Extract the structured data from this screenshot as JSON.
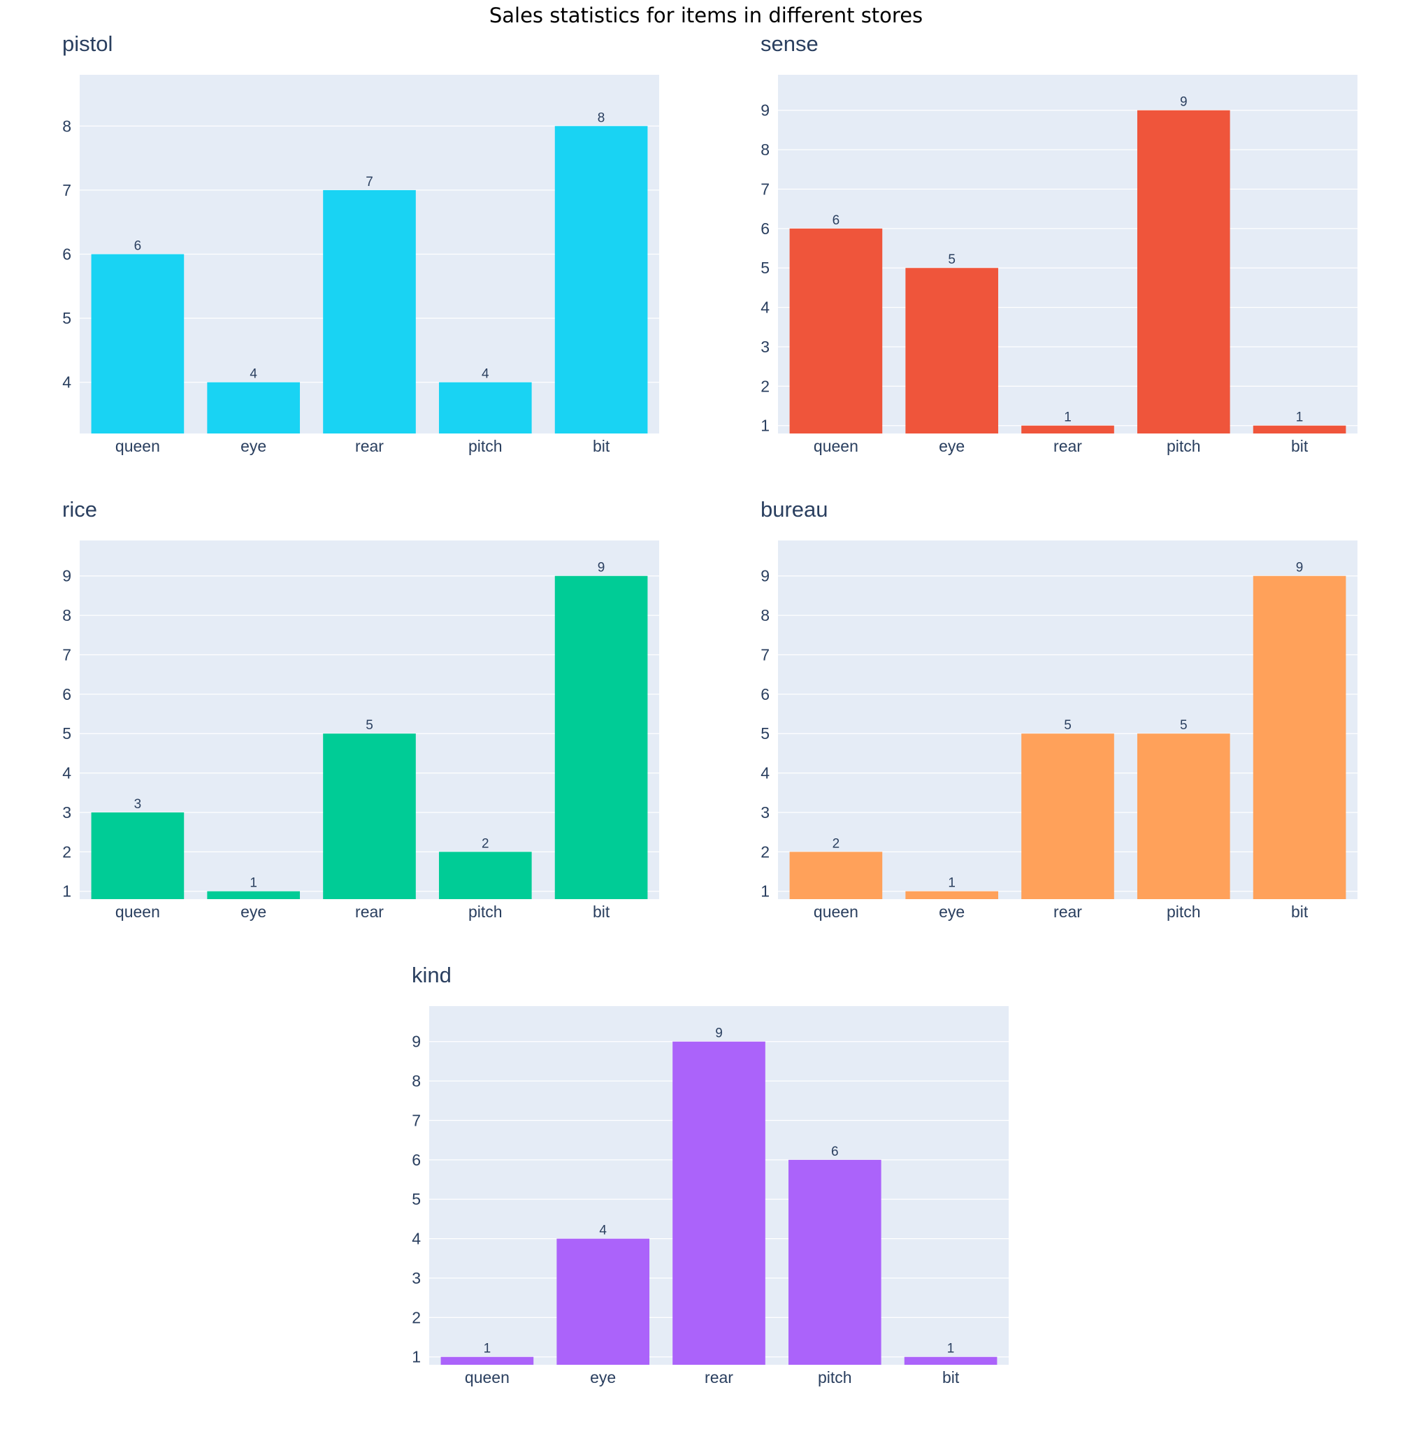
{
  "chart_data": {
    "title": "Sales statistics for items in different stores",
    "type": "bar",
    "categories": [
      "queen",
      "eye",
      "rear",
      "pitch",
      "bit"
    ],
    "background_color": "#e5ecf6",
    "subplots": [
      {
        "title": "pistol",
        "type": "bar",
        "categories": [
          "queen",
          "eye",
          "rear",
          "pitch",
          "bit"
        ],
        "values": [
          6,
          4,
          7,
          4,
          8
        ],
        "color": "#19d3f3",
        "ylim": [
          3.2,
          8.8
        ],
        "yticks": [
          4,
          5,
          6,
          7,
          8
        ]
      },
      {
        "title": "sense",
        "type": "bar",
        "categories": [
          "queen",
          "eye",
          "rear",
          "pitch",
          "bit"
        ],
        "values": [
          6,
          5,
          1,
          9,
          1
        ],
        "color": "#ef553b",
        "ylim": [
          0.8,
          9.9
        ],
        "yticks": [
          1,
          2,
          3,
          4,
          5,
          6,
          7,
          8,
          9
        ]
      },
      {
        "title": "rice",
        "type": "bar",
        "categories": [
          "queen",
          "eye",
          "rear",
          "pitch",
          "bit"
        ],
        "values": [
          3,
          1,
          5,
          2,
          9
        ],
        "color": "#00cc96",
        "ylim": [
          0.8,
          9.9
        ],
        "yticks": [
          1,
          2,
          3,
          4,
          5,
          6,
          7,
          8,
          9
        ]
      },
      {
        "title": "bureau",
        "type": "bar",
        "categories": [
          "queen",
          "eye",
          "rear",
          "pitch",
          "bit"
        ],
        "values": [
          2,
          1,
          5,
          5,
          9
        ],
        "color": "#ffa15a",
        "ylim": [
          0.8,
          9.9
        ],
        "yticks": [
          1,
          2,
          3,
          4,
          5,
          6,
          7,
          8,
          9
        ]
      },
      {
        "title": "kind",
        "type": "bar",
        "categories": [
          "queen",
          "eye",
          "rear",
          "pitch",
          "bit"
        ],
        "values": [
          1,
          4,
          9,
          6,
          1
        ],
        "color": "#ab63fa",
        "ylim": [
          0.8,
          9.9
        ],
        "yticks": [
          1,
          2,
          3,
          4,
          5,
          6,
          7,
          8,
          9
        ]
      }
    ]
  }
}
